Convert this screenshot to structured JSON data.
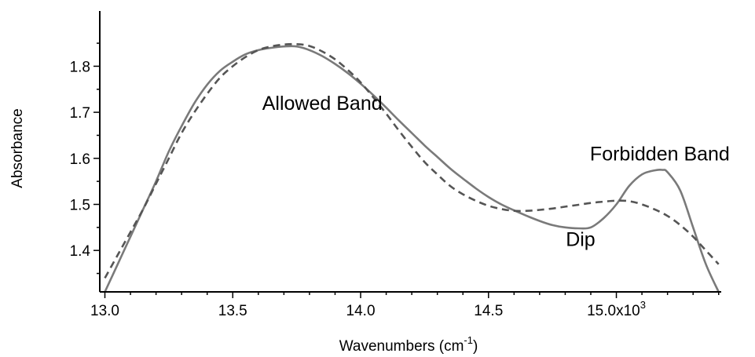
{
  "chart_data": {
    "type": "line",
    "xlabel": "Wavenumbers (cm",
    "xlabel_sup": "-1",
    "xlabel_tail": ")",
    "ylabel": "Absorbance",
    "xlim": [
      12.98,
      15.41
    ],
    "ylim": [
      1.31,
      1.92
    ],
    "x_ticks": [
      {
        "value": 13.0,
        "label": "13.0"
      },
      {
        "value": 13.5,
        "label": "13.5"
      },
      {
        "value": 14.0,
        "label": "14.0"
      },
      {
        "value": 14.5,
        "label": "14.5"
      },
      {
        "value": 15.0,
        "label": "15.0x10",
        "sup": "3"
      }
    ],
    "y_ticks": [
      {
        "value": 1.4,
        "label": "1.4"
      },
      {
        "value": 1.5,
        "label": "1.5"
      },
      {
        "value": 1.6,
        "label": "1.6"
      },
      {
        "value": 1.7,
        "label": "1.7"
      },
      {
        "value": 1.8,
        "label": "1.8"
      }
    ],
    "grid": false,
    "series": [
      {
        "style": "solid",
        "color": "#7a7a7a",
        "x": [
          13.0,
          13.05,
          13.1,
          13.15,
          13.2,
          13.25,
          13.3,
          13.35,
          13.4,
          13.45,
          13.5,
          13.55,
          13.6,
          13.65,
          13.7,
          13.75,
          13.8,
          13.85,
          13.9,
          13.95,
          14.0,
          14.05,
          14.1,
          14.15,
          14.2,
          14.25,
          14.3,
          14.35,
          14.4,
          14.45,
          14.5,
          14.55,
          14.6,
          14.65,
          14.7,
          14.75,
          14.8,
          14.85,
          14.9,
          14.95,
          15.0,
          15.05,
          15.1,
          15.15,
          15.18,
          15.2,
          15.25,
          15.3,
          15.35,
          15.4
        ],
        "y": [
          1.31,
          1.37,
          1.43,
          1.49,
          1.55,
          1.615,
          1.67,
          1.72,
          1.76,
          1.79,
          1.81,
          1.826,
          1.835,
          1.84,
          1.843,
          1.843,
          1.835,
          1.822,
          1.805,
          1.785,
          1.762,
          1.737,
          1.71,
          1.682,
          1.655,
          1.628,
          1.603,
          1.578,
          1.556,
          1.535,
          1.516,
          1.5,
          1.487,
          1.475,
          1.464,
          1.455,
          1.45,
          1.448,
          1.45,
          1.47,
          1.5,
          1.54,
          1.565,
          1.574,
          1.575,
          1.57,
          1.53,
          1.45,
          1.37,
          1.31
        ]
      },
      {
        "style": "dashed",
        "color": "#555555",
        "x": [
          13.0,
          13.05,
          13.1,
          13.15,
          13.2,
          13.25,
          13.3,
          13.35,
          13.4,
          13.45,
          13.5,
          13.55,
          13.6,
          13.65,
          13.7,
          13.75,
          13.8,
          13.85,
          13.9,
          13.95,
          14.0,
          14.05,
          14.1,
          14.15,
          14.2,
          14.25,
          14.3,
          14.35,
          14.4,
          14.45,
          14.5,
          14.55,
          14.6,
          14.65,
          14.7,
          14.75,
          14.8,
          14.85,
          14.9,
          14.95,
          15.0,
          15.05,
          15.1,
          15.15,
          15.2,
          15.25,
          15.3,
          15.35,
          15.4
        ],
        "y": [
          1.34,
          1.39,
          1.44,
          1.49,
          1.545,
          1.6,
          1.655,
          1.7,
          1.74,
          1.775,
          1.8,
          1.82,
          1.835,
          1.843,
          1.847,
          1.848,
          1.844,
          1.832,
          1.815,
          1.792,
          1.765,
          1.732,
          1.697,
          1.66,
          1.625,
          1.592,
          1.565,
          1.54,
          1.522,
          1.508,
          1.497,
          1.49,
          1.486,
          1.486,
          1.488,
          1.491,
          1.495,
          1.499,
          1.503,
          1.506,
          1.508,
          1.507,
          1.5,
          1.489,
          1.475,
          1.455,
          1.43,
          1.4,
          1.37
        ]
      }
    ],
    "annotations": [
      {
        "text": "Allowed Band",
        "x": 13.85,
        "y": 1.705
      },
      {
        "text": "Forbidden Band",
        "x": 15.17,
        "y": 1.595
      },
      {
        "text": "Dip",
        "x": 14.86,
        "y": 1.41
      }
    ]
  }
}
